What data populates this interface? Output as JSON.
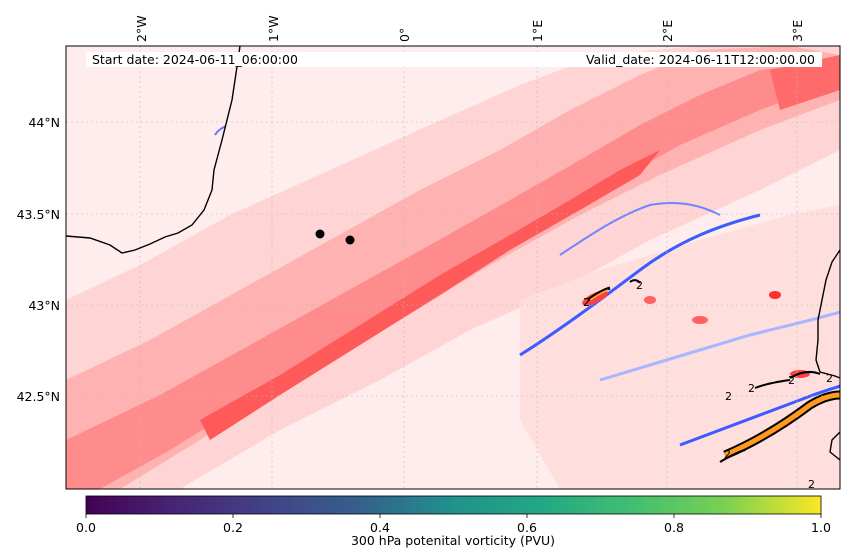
{
  "header": {
    "start_date": "Start date: 2024-06-11_06:00:00",
    "valid_date": "Valid_date: 2024-06-11T12:00:00.00"
  },
  "longitude_ticks": [
    "2°W",
    "1°W",
    "0°",
    "1°E",
    "2°E",
    "3°E"
  ],
  "latitude_ticks": [
    "44°N",
    "43.5°N",
    "43°N",
    "42.5°N"
  ],
  "colorbar": {
    "label": "300 hPa potenital vorticity (PVU)",
    "colormap": "viridis",
    "range": [
      0.0,
      1.0
    ],
    "ticks": [
      "0.0",
      "0.2",
      "0.4",
      "0.6",
      "0.8",
      "1.0"
    ]
  },
  "field_colors": {
    "lowest": "#ffecec",
    "low": "#ffd4d4",
    "mid": "#ffb2b2",
    "high": "#ff8c8c",
    "max": "#ff4a4a",
    "negative": "#3a5dff",
    "negative_light": "#c8d2ff"
  },
  "contour_labels": [
    "2",
    "2",
    "2",
    "2",
    "2",
    "2",
    "2",
    "2"
  ],
  "markers": [
    {
      "name": "point-1",
      "lon": -0.62,
      "lat": 43.38
    },
    {
      "name": "point-2",
      "lon": -0.38,
      "lat": 43.35
    }
  ]
}
